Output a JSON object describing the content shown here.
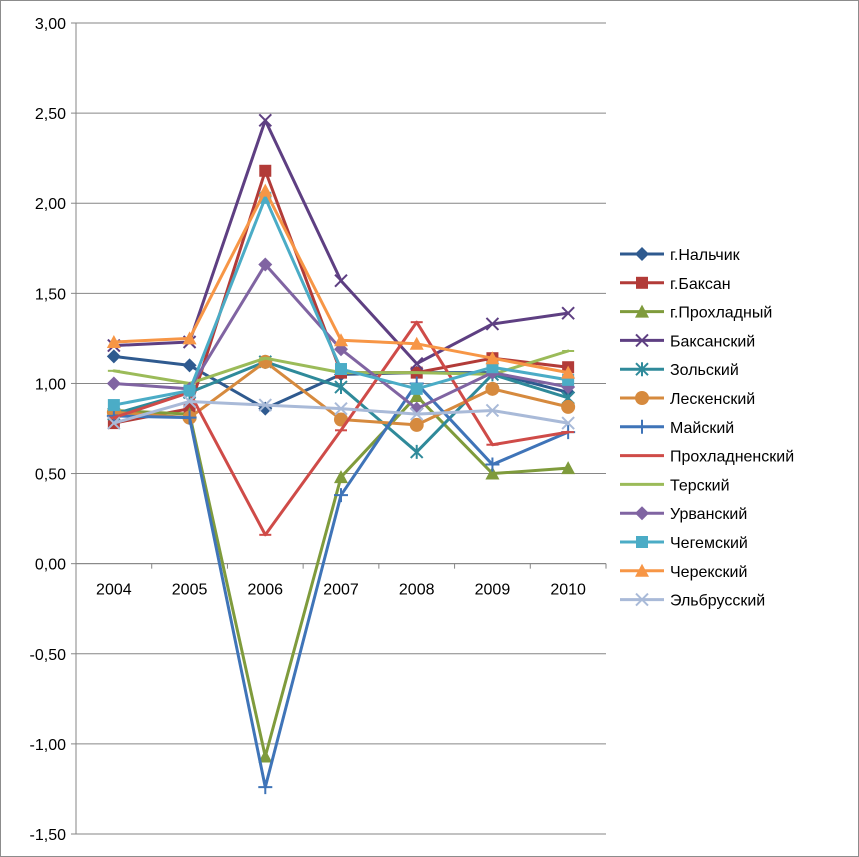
{
  "chart_data": {
    "type": "line",
    "title": "",
    "xlabel": "",
    "ylabel": "",
    "categories": [
      "2004",
      "2005",
      "2006",
      "2007",
      "2008",
      "2009",
      "2010"
    ],
    "ylim": [
      -1.5,
      3.0
    ],
    "ytick_labels": [
      "3,00",
      "2,50",
      "2,00",
      "1,50",
      "1,00",
      "0,50",
      "0,00",
      "-0,50",
      "-1,00",
      "-1,50"
    ],
    "grid": true,
    "legend_position": "right",
    "series": [
      {
        "name": "г.Нальчик",
        "color": "#2f5a8f",
        "marker": "diamond",
        "values": [
          1.15,
          1.1,
          0.86,
          1.05,
          1.06,
          1.06,
          0.95
        ]
      },
      {
        "name": "г.Баксан",
        "color": "#b23b38",
        "marker": "square",
        "values": [
          0.78,
          0.86,
          2.18,
          1.06,
          1.06,
          1.14,
          1.09
        ]
      },
      {
        "name": "г.Прохладный",
        "color": "#7f9b3c",
        "marker": "triangle",
        "values": [
          0.85,
          0.83,
          -1.07,
          0.48,
          0.93,
          0.5,
          0.53
        ]
      },
      {
        "name": "Баксанский",
        "color": "#5e3f82",
        "marker": "x",
        "values": [
          1.21,
          1.23,
          2.46,
          1.57,
          1.11,
          1.33,
          1.39
        ]
      },
      {
        "name": "Зольский",
        "color": "#2f8a9a",
        "marker": "asterisk",
        "values": [
          0.83,
          0.95,
          1.12,
          0.98,
          0.62,
          1.05,
          0.92
        ]
      },
      {
        "name": "Лескенский",
        "color": "#d68a3e",
        "marker": "circle",
        "values": [
          0.84,
          0.81,
          1.12,
          0.8,
          0.77,
          0.97,
          0.87
        ]
      },
      {
        "name": "Майский",
        "color": "#3f74b8",
        "marker": "plus",
        "values": [
          0.82,
          0.81,
          -1.24,
          0.38,
          1.0,
          0.55,
          0.73
        ]
      },
      {
        "name": "Прохладненский",
        "color": "#cf4b48",
        "marker": "dash",
        "values": [
          0.81,
          0.95,
          0.16,
          0.74,
          1.34,
          0.66,
          0.73
        ]
      },
      {
        "name": "Терский",
        "color": "#9bbb59",
        "marker": "dash",
        "values": [
          1.07,
          1.0,
          1.14,
          1.06,
          1.06,
          1.05,
          1.18
        ]
      },
      {
        "name": "Урванский",
        "color": "#8064a2",
        "marker": "diamond",
        "values": [
          1.0,
          0.97,
          1.66,
          1.19,
          0.86,
          1.06,
          0.98
        ]
      },
      {
        "name": "Чегемский",
        "color": "#4bacc6",
        "marker": "square",
        "values": [
          0.88,
          0.96,
          2.03,
          1.08,
          0.97,
          1.09,
          1.02
        ]
      },
      {
        "name": "Черекский",
        "color": "#f79646",
        "marker": "triangle",
        "values": [
          1.23,
          1.25,
          2.07,
          1.24,
          1.22,
          1.14,
          1.06
        ]
      },
      {
        "name": "Эльбрусский",
        "color": "#a9bad8",
        "marker": "x",
        "values": [
          0.78,
          0.9,
          0.88,
          0.86,
          0.83,
          0.85,
          0.78
        ]
      }
    ]
  }
}
